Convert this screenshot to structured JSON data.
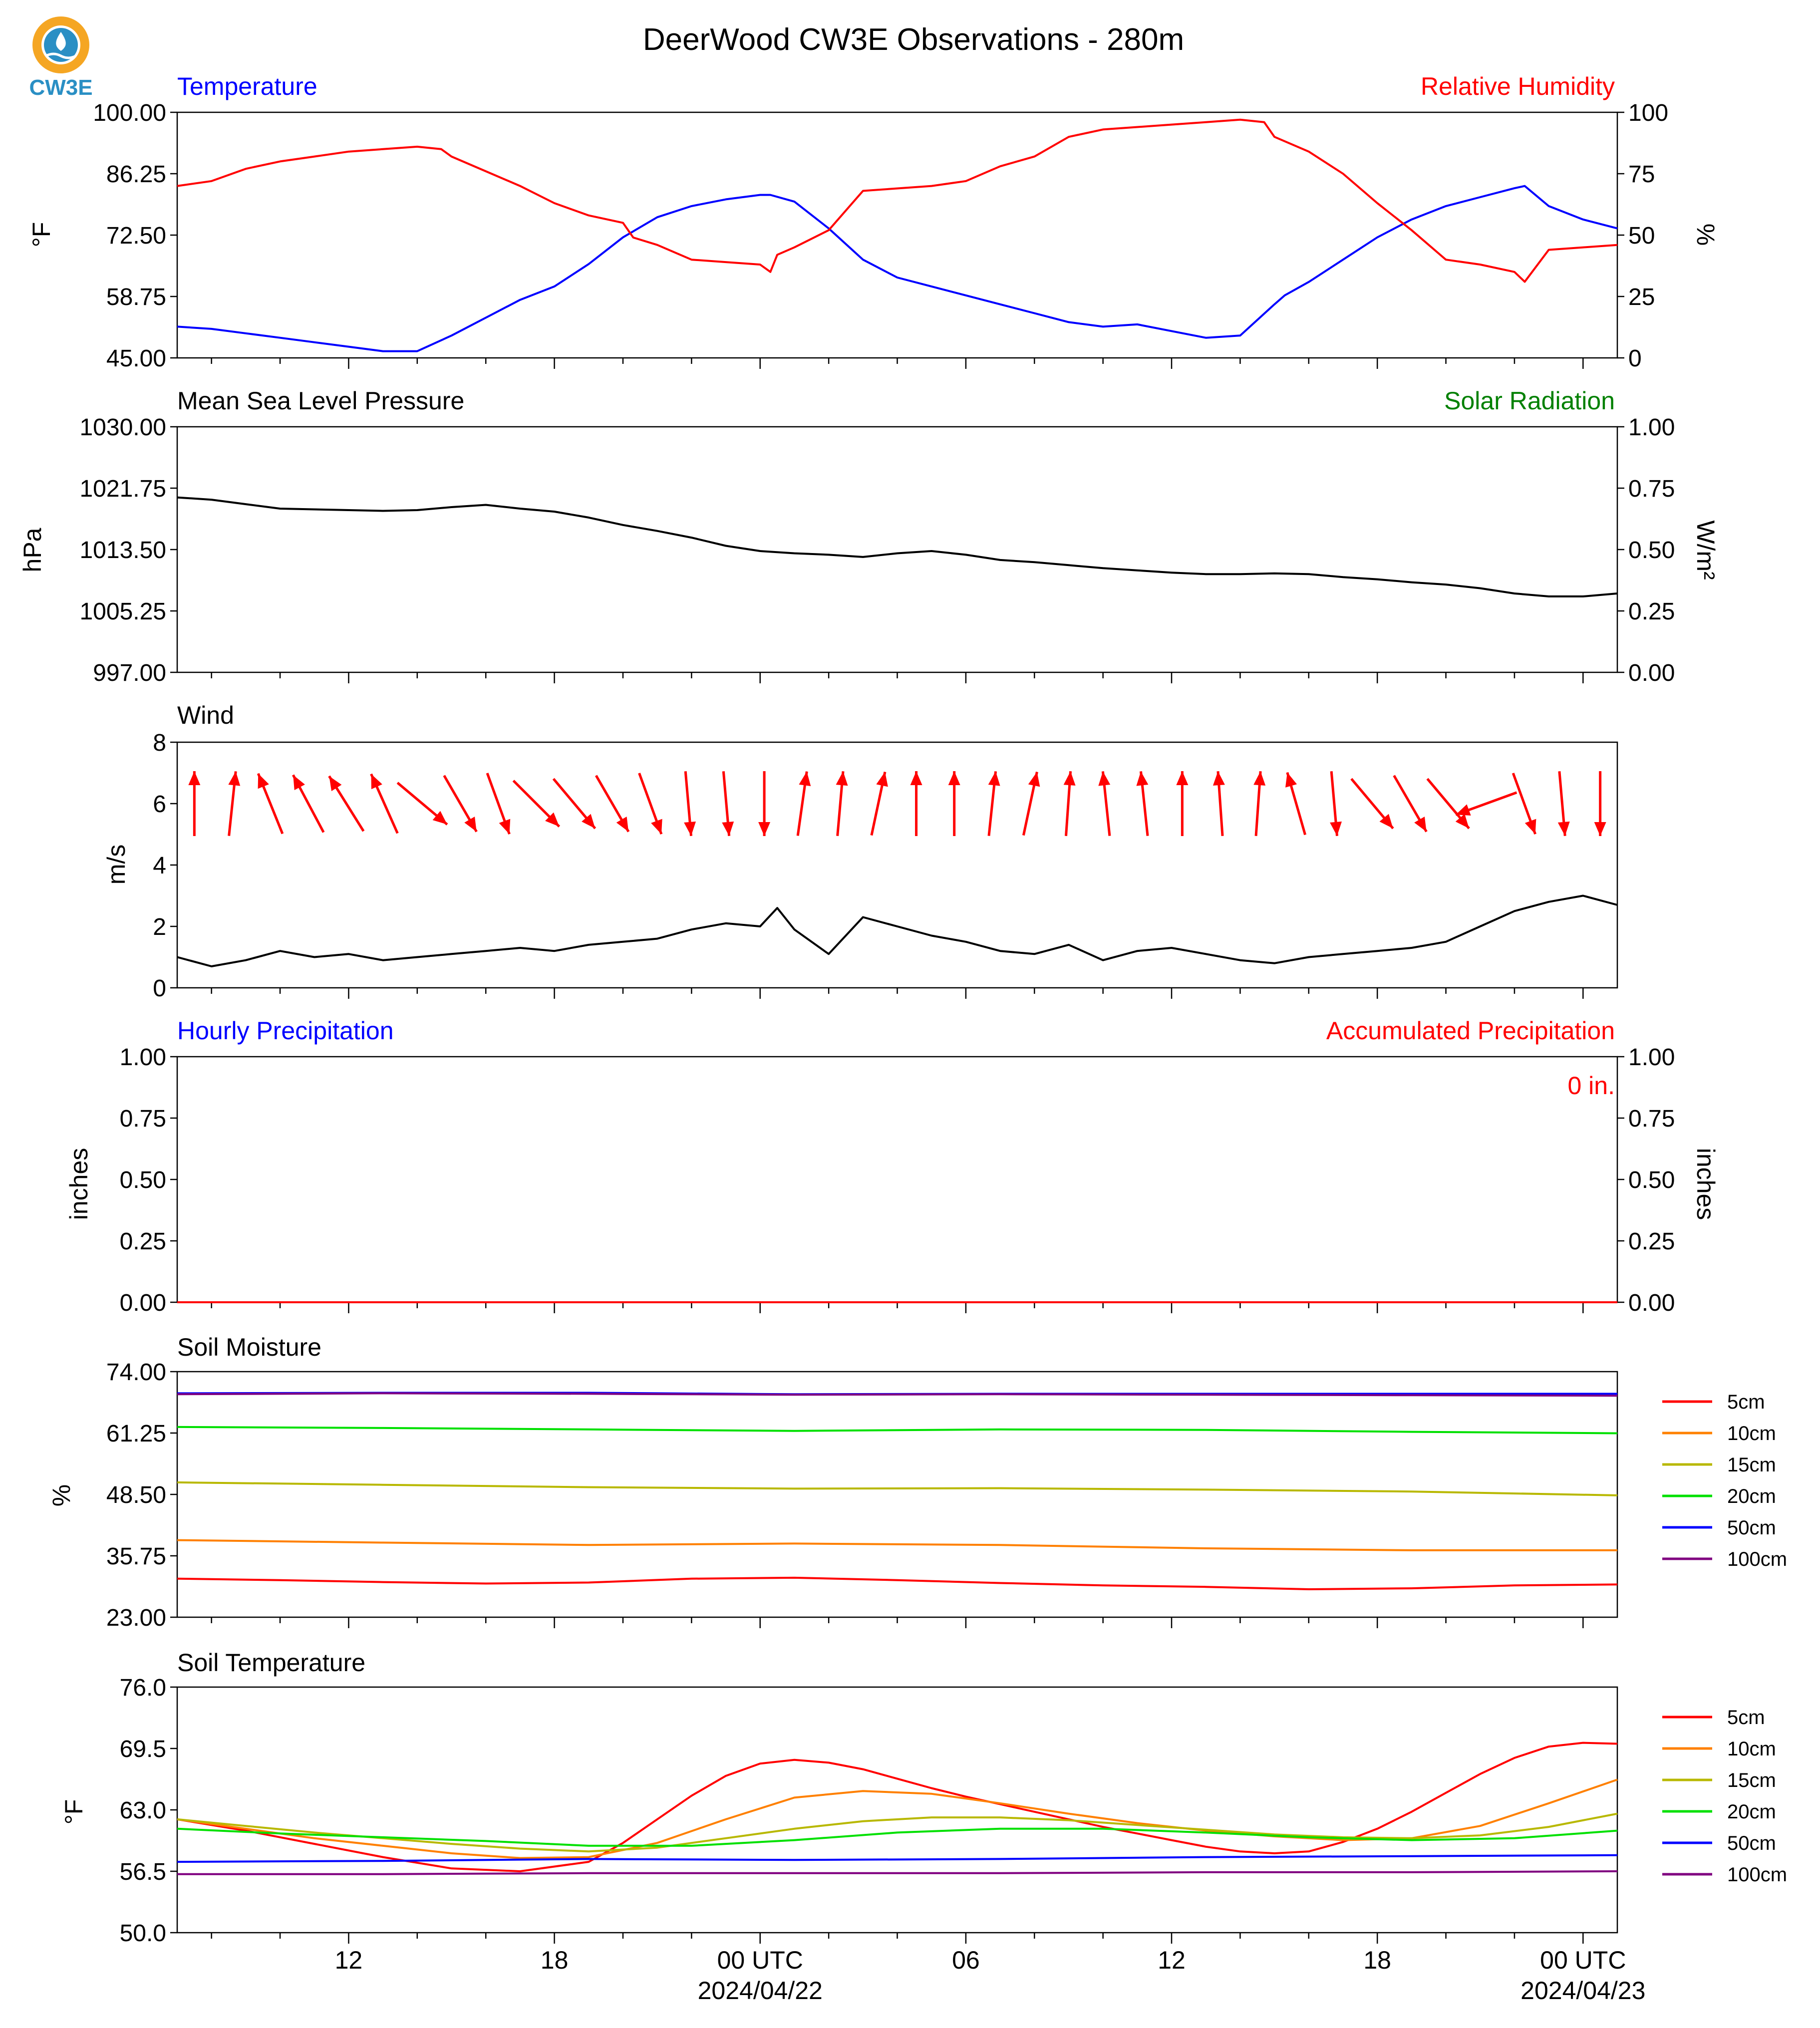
{
  "figure": {
    "title": "DeerWood CW3E Observations - 280m",
    "logo_text": "CW3E",
    "colors": {
      "temp": "#0000ff",
      "rh": "#ff0000",
      "pressure": "#000000",
      "solar": "#008000",
      "wind_line": "#000000",
      "wind_arrow": "#ff0000",
      "hourly_precip": "#0000ff",
      "accum_precip": "#ff0000",
      "logo_orange": "#f5a623",
      "logo_blue": "#2a8fc4"
    }
  },
  "x_axis": {
    "tick_labels": [
      "12",
      "18",
      "00 UTC",
      "06",
      "12",
      "18",
      "00 UTC"
    ],
    "tick_hours": [
      12,
      18,
      24,
      30,
      36,
      42,
      48
    ],
    "date_labels": [
      "2024/04/22",
      "2024/04/23"
    ],
    "range_hours": [
      7,
      49
    ]
  },
  "chart_data": [
    {
      "type": "line",
      "title": "Temperature",
      "title_right": "Relative Humidity",
      "ylabel": "°F",
      "ylabel_right": "%",
      "ylim": [
        45,
        100
      ],
      "ylim_right": [
        0,
        100
      ],
      "yticks": [
        "100.00",
        "86.25",
        "72.50",
        "58.75",
        "45.00"
      ],
      "yticks_right": [
        "100",
        "75",
        "50",
        "25",
        "0"
      ],
      "series": [
        {
          "name": "Temperature",
          "axis": "left",
          "x": [
            7,
            8,
            9,
            10,
            11,
            12,
            13,
            14,
            15,
            16,
            17,
            18,
            19,
            20,
            21,
            22,
            23,
            24,
            24.3,
            25,
            26,
            27,
            28,
            29,
            30,
            31,
            32,
            33,
            34,
            35,
            36,
            37,
            38,
            39,
            39.3,
            40,
            41,
            42,
            43,
            44,
            45,
            46,
            46.3,
            47,
            48,
            49
          ],
          "y": [
            52,
            51.5,
            50.5,
            49.5,
            48.5,
            47.5,
            46.5,
            46.5,
            50,
            54,
            58,
            61,
            66,
            72,
            76.5,
            79,
            80.5,
            81.5,
            81.5,
            80,
            74,
            67,
            63,
            61,
            59,
            57,
            55,
            53,
            52,
            52.5,
            51,
            49.5,
            50,
            57,
            59,
            62,
            67,
            72,
            76,
            79,
            81,
            83,
            83.5,
            79,
            76,
            74
          ]
        },
        {
          "name": "Relative Humidity",
          "axis": "right",
          "x": [
            7,
            8,
            9,
            10,
            11,
            12,
            13,
            14,
            14.7,
            15,
            16,
            17,
            18,
            19,
            20,
            20.3,
            21,
            22,
            23,
            24,
            24.3,
            24.5,
            25,
            26,
            27,
            28,
            29,
            30,
            31,
            32,
            33,
            34,
            35,
            36,
            37,
            38,
            38.7,
            39,
            40,
            41,
            42,
            43,
            44,
            45,
            46,
            46.3,
            47,
            48,
            49
          ],
          "y": [
            70,
            72,
            77,
            80,
            82,
            84,
            85,
            86,
            85,
            82,
            76,
            70,
            63,
            58,
            55,
            49,
            46,
            40,
            39,
            38,
            35,
            42,
            45,
            52,
            68,
            69,
            70,
            72,
            78,
            82,
            90,
            93,
            94,
            95,
            96,
            97,
            96,
            90,
            84,
            75,
            63,
            52,
            40,
            38,
            35,
            31,
            44,
            45,
            46
          ]
        }
      ]
    },
    {
      "type": "line",
      "title": "Mean Sea Level Pressure",
      "title_right": "Solar Radiation",
      "ylabel": "hPa",
      "ylabel_right": "W/m²",
      "ylim": [
        997,
        1030
      ],
      "ylim_right": [
        0,
        1
      ],
      "yticks": [
        "1030.00",
        "1021.75",
        "1013.50",
        "1005.25",
        "997.00"
      ],
      "yticks_right": [
        "1.00",
        "0.75",
        "0.50",
        "0.25",
        "0.00"
      ],
      "series": [
        {
          "name": "Mean Sea Level Pressure",
          "axis": "left",
          "x": [
            7,
            8,
            9,
            10,
            11,
            12,
            13,
            14,
            15,
            16,
            17,
            18,
            19,
            20,
            21,
            22,
            23,
            24,
            25,
            26,
            27,
            28,
            29,
            30,
            31,
            32,
            33,
            34,
            35,
            36,
            37,
            38,
            39,
            40,
            41,
            42,
            43,
            44,
            45,
            46,
            47,
            48,
            49
          ],
          "y": [
            1020.5,
            1020.2,
            1019.6,
            1019.0,
            1018.9,
            1018.8,
            1018.7,
            1018.8,
            1019.2,
            1019.5,
            1019.0,
            1018.6,
            1017.8,
            1016.8,
            1016.0,
            1015.1,
            1014.0,
            1013.3,
            1013.0,
            1012.8,
            1012.5,
            1013.0,
            1013.3,
            1012.8,
            1012.1,
            1011.8,
            1011.4,
            1011.0,
            1010.7,
            1010.4,
            1010.2,
            1010.2,
            1010.3,
            1010.2,
            1009.8,
            1009.5,
            1009.1,
            1008.8,
            1008.3,
            1007.6,
            1007.2,
            1007.2,
            1007.6
          ]
        }
      ]
    },
    {
      "type": "line",
      "title": "Wind",
      "ylabel": "m/s",
      "ylim": [
        0,
        8
      ],
      "yticks": [
        "8",
        "6",
        "4",
        "2",
        "0"
      ],
      "series": [
        {
          "name": "Wind",
          "axis": "left",
          "x": [
            7,
            8,
            9,
            10,
            11,
            12,
            13,
            14,
            15,
            16,
            17,
            18,
            19,
            20,
            21,
            22,
            23,
            24,
            24.5,
            25,
            26,
            27,
            28,
            29,
            30,
            31,
            32,
            33,
            34,
            35,
            36,
            37,
            38,
            39,
            40,
            41,
            42,
            43,
            44,
            45,
            46,
            47,
            48,
            49
          ],
          "y": [
            1.0,
            0.7,
            0.9,
            1.2,
            1.0,
            1.1,
            0.9,
            1.0,
            1.1,
            1.2,
            1.3,
            1.2,
            1.4,
            1.5,
            1.6,
            1.9,
            2.1,
            2.0,
            2.6,
            1.9,
            1.1,
            2.3,
            2.0,
            1.7,
            1.5,
            1.2,
            1.1,
            1.4,
            0.9,
            1.2,
            1.3,
            1.1,
            0.9,
            0.8,
            1.0,
            1.1,
            1.2,
            1.3,
            1.5,
            2.0,
            2.5,
            2.8,
            3.0,
            2.7
          ]
        }
      ],
      "arrows_direction_deg": [
        0,
        6,
        -22,
        -28,
        -32,
        -24,
        130,
        150,
        160,
        135,
        140,
        150,
        160,
        175,
        175,
        180,
        8,
        5,
        12,
        0,
        0,
        6,
        12,
        4,
        -6,
        -6,
        0,
        -4,
        4,
        -16,
        175,
        140,
        150,
        140,
        -110,
        160,
        175,
        180
      ]
    },
    {
      "type": "line",
      "title": "Hourly Precipitation",
      "title_right": "Accumulated Precipitation",
      "annotation": "0 in.",
      "ylabel": "inches",
      "ylabel_right": "inches",
      "ylim": [
        0,
        1
      ],
      "ylim_right": [
        0,
        1
      ],
      "yticks": [
        "1.00",
        "0.75",
        "0.50",
        "0.25",
        "0.00"
      ],
      "yticks_right": [
        "1.00",
        "0.75",
        "0.50",
        "0.25",
        "0.00"
      ],
      "series": [
        {
          "name": "Hourly Precipitation",
          "axis": "left",
          "x": [
            7,
            49
          ],
          "y": [
            0,
            0
          ]
        },
        {
          "name": "Accumulated Precipitation",
          "axis": "right",
          "x": [
            7,
            49
          ],
          "y": [
            0,
            0
          ]
        }
      ]
    },
    {
      "type": "line",
      "title": "Soil Moisture",
      "ylabel": "%",
      "ylim": [
        23,
        74
      ],
      "yticks": [
        "74.00",
        "61.25",
        "48.50",
        "35.75",
        "23.00"
      ],
      "legend": "right",
      "series": [
        {
          "name": "5cm",
          "color": "#ff0000",
          "x": [
            7,
            10,
            13,
            16,
            19,
            22,
            25,
            28,
            31,
            34,
            37,
            40,
            43,
            46,
            49
          ],
          "y": [
            31.0,
            30.7,
            30.3,
            30.0,
            30.2,
            31.0,
            31.2,
            30.7,
            30.1,
            29.6,
            29.3,
            28.8,
            29.0,
            29.6,
            29.8
          ]
        },
        {
          "name": "10cm",
          "color": "#ff8000",
          "x": [
            7,
            13,
            19,
            25,
            31,
            37,
            43,
            49
          ],
          "y": [
            39.0,
            38.5,
            38.0,
            38.3,
            38.0,
            37.3,
            36.9,
            36.9
          ]
        },
        {
          "name": "15cm",
          "color": "#b8b800",
          "x": [
            7,
            13,
            19,
            25,
            31,
            37,
            43,
            49
          ],
          "y": [
            51.0,
            50.5,
            50.0,
            49.7,
            49.8,
            49.5,
            49.1,
            48.3
          ]
        },
        {
          "name": "20cm",
          "color": "#00e000",
          "x": [
            7,
            13,
            19,
            25,
            31,
            37,
            43,
            49
          ],
          "y": [
            62.5,
            62.3,
            62.0,
            61.7,
            62.0,
            61.9,
            61.5,
            61.2
          ]
        },
        {
          "name": "50cm",
          "color": "#0000ff",
          "x": [
            7,
            13,
            19,
            25,
            31,
            37,
            43,
            49
          ],
          "y": [
            69.5,
            69.6,
            69.6,
            69.3,
            69.4,
            69.4,
            69.4,
            69.4
          ]
        },
        {
          "name": "100cm",
          "color": "#800080",
          "x": [
            7,
            13,
            19,
            25,
            31,
            37,
            43,
            49
          ],
          "y": [
            69.3,
            69.5,
            69.4,
            69.2,
            69.3,
            69.2,
            69.1,
            69.0
          ]
        }
      ]
    },
    {
      "type": "line",
      "title": "Soil Temperature",
      "ylabel": "°F",
      "ylim": [
        50,
        76
      ],
      "yticks": [
        "76.0",
        "69.5",
        "63.0",
        "56.5",
        "50.0"
      ],
      "xlabel": "",
      "legend": "right",
      "series": [
        {
          "name": "5cm",
          "color": "#ff0000",
          "x": [
            7,
            9,
            11,
            13,
            15,
            17,
            19,
            20,
            21,
            22,
            23,
            24,
            25,
            26,
            27,
            28,
            29,
            30,
            31,
            32,
            33,
            34,
            35,
            36,
            37,
            38,
            39,
            40,
            41,
            42,
            43,
            44,
            45,
            46,
            47,
            48,
            49
          ],
          "y": [
            62.0,
            60.8,
            59.4,
            58.0,
            56.8,
            56.5,
            57.5,
            59.5,
            62.0,
            64.5,
            66.6,
            67.9,
            68.3,
            68.0,
            67.3,
            66.3,
            65.3,
            64.4,
            63.6,
            62.8,
            62.0,
            61.2,
            60.5,
            59.8,
            59.1,
            58.6,
            58.4,
            58.6,
            59.6,
            61.0,
            62.8,
            64.8,
            66.8,
            68.5,
            69.7,
            70.1,
            70.0
          ]
        },
        {
          "name": "10cm",
          "color": "#ff8000",
          "x": [
            7,
            9,
            11,
            13,
            15,
            17,
            19,
            21,
            23,
            25,
            27,
            29,
            31,
            33,
            35,
            37,
            39,
            41,
            43,
            45,
            47,
            49
          ],
          "y": [
            62.0,
            61.0,
            60.0,
            59.2,
            58.4,
            57.9,
            58.0,
            59.5,
            62.0,
            64.3,
            65.0,
            64.7,
            63.7,
            62.6,
            61.6,
            60.8,
            60.2,
            59.8,
            60.0,
            61.3,
            63.7,
            66.2
          ]
        },
        {
          "name": "15cm",
          "color": "#b8b800",
          "x": [
            7,
            9,
            11,
            13,
            15,
            17,
            19,
            21,
            23,
            25,
            27,
            29,
            31,
            33,
            35,
            37,
            39,
            41,
            43,
            45,
            47,
            49
          ],
          "y": [
            62.0,
            61.3,
            60.6,
            60.0,
            59.4,
            58.9,
            58.6,
            59.0,
            60.0,
            61.0,
            61.8,
            62.2,
            62.2,
            61.9,
            61.4,
            60.9,
            60.4,
            60.1,
            60.0,
            60.3,
            61.2,
            62.6
          ]
        },
        {
          "name": "20cm",
          "color": "#00e000",
          "x": [
            7,
            10,
            13,
            16,
            19,
            22,
            25,
            28,
            31,
            34,
            37,
            40,
            43,
            46,
            49
          ],
          "y": [
            61.0,
            60.5,
            60.1,
            59.7,
            59.2,
            59.2,
            59.8,
            60.6,
            61.0,
            61.0,
            60.6,
            60.1,
            59.8,
            60.0,
            60.8
          ]
        },
        {
          "name": "50cm",
          "color": "#0000ff",
          "x": [
            7,
            13,
            19,
            25,
            31,
            37,
            43,
            49
          ],
          "y": [
            57.5,
            57.6,
            57.8,
            57.7,
            57.8,
            58.0,
            58.1,
            58.2
          ]
        },
        {
          "name": "100cm",
          "color": "#800080",
          "x": [
            7,
            13,
            19,
            25,
            31,
            37,
            43,
            49
          ],
          "y": [
            56.2,
            56.2,
            56.3,
            56.3,
            56.3,
            56.4,
            56.4,
            56.5
          ]
        }
      ]
    }
  ]
}
